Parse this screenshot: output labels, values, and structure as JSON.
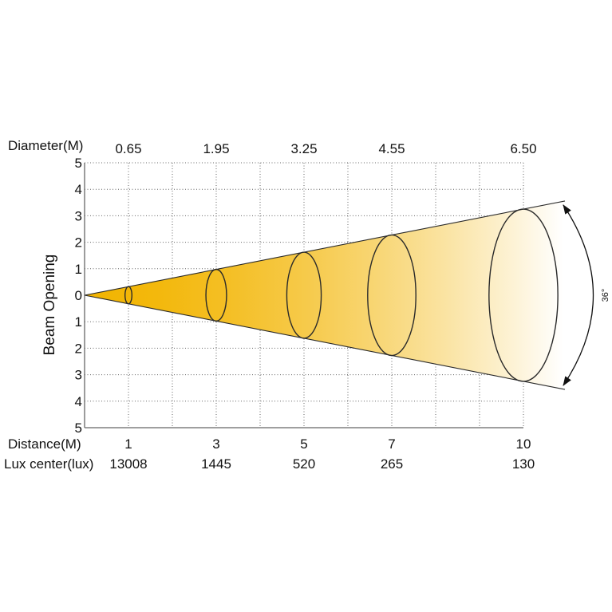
{
  "diagram": {
    "diameter_label": "Diameter(M)",
    "distance_label": "Distance(M)",
    "lux_label": "Lux center(lux)",
    "y_axis_label": "Beam Opening",
    "beam_angle_label": "36°",
    "y_ticks": [
      "5",
      "4",
      "3",
      "2",
      "1",
      "0",
      "1",
      "2",
      "3",
      "4",
      "5"
    ],
    "y_range": [
      -5,
      5
    ],
    "x_range": [
      0,
      10
    ],
    "points": [
      {
        "distance": "1",
        "diameter": "0.65",
        "lux": "13008"
      },
      {
        "distance": "3",
        "diameter": "1.95",
        "lux": "1445"
      },
      {
        "distance": "5",
        "diameter": "3.25",
        "lux": "520"
      },
      {
        "distance": "7",
        "diameter": "4.55",
        "lux": "265"
      },
      {
        "distance": "10",
        "diameter": "6.50",
        "lux": "130"
      }
    ],
    "colors": {
      "beam": "#f2b400",
      "outline": "#2a2a2a",
      "grid": "#666666",
      "text": "#111111"
    }
  }
}
